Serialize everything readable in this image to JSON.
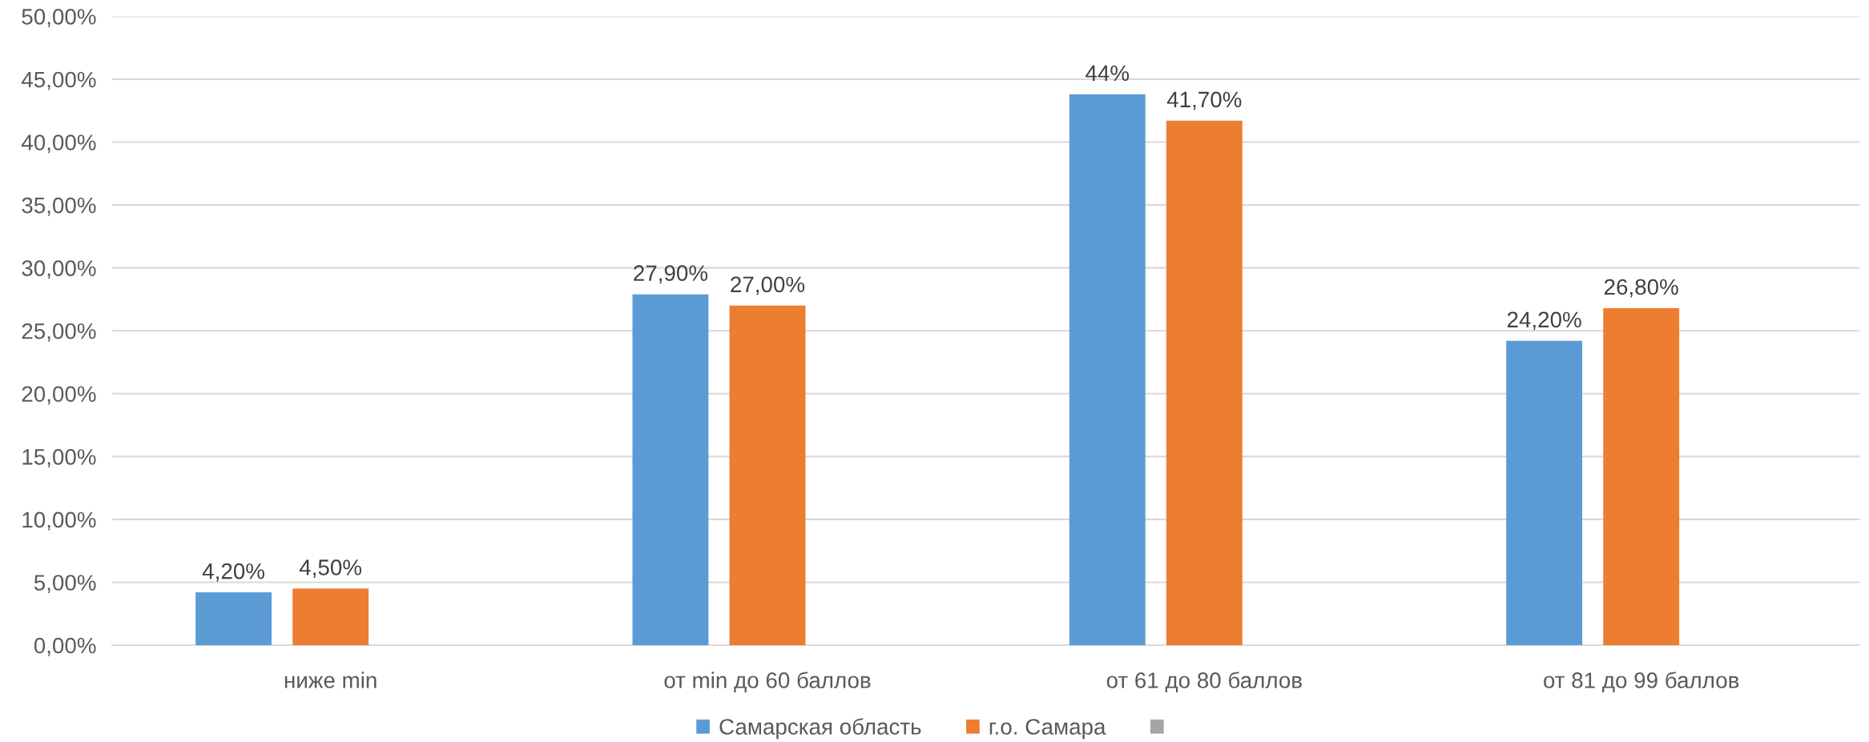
{
  "chart_data": {
    "type": "bar",
    "categories": [
      "ниже min",
      "от min до 60 баллов",
      "от 61 до 80 баллов",
      "от 81 до 99 баллов"
    ],
    "series": [
      {
        "name": "Самарская область",
        "color": "#5b9bd5",
        "values": [
          4.2,
          27.9,
          43.8,
          24.2
        ],
        "value_labels": [
          "4,20%",
          "27,90%",
          "44%",
          "24,20%"
        ]
      },
      {
        "name": "г.о. Самара",
        "color": "#ed7d31",
        "values": [
          4.5,
          27.0,
          41.7,
          26.8
        ],
        "value_labels": [
          "4,50%",
          "27,00%",
          "41,70%",
          "26,80%"
        ]
      },
      {
        "color": "#a5a5a5",
        "values": [
          null,
          null,
          null,
          null
        ]
      }
    ],
    "ylim": [
      0,
      50
    ],
    "yticks": [
      {
        "value": 0,
        "label": "0,00%"
      },
      {
        "value": 5,
        "label": "5,00%"
      },
      {
        "value": 10,
        "label": "10,00%"
      },
      {
        "value": 15,
        "label": "15,00%"
      },
      {
        "value": 20,
        "label": "20,00%"
      },
      {
        "value": 25,
        "label": "25,00%"
      },
      {
        "value": 30,
        "label": "30,00%"
      },
      {
        "value": 35,
        "label": "35,00%"
      },
      {
        "value": 40,
        "label": "40,00%"
      },
      {
        "value": 45,
        "label": "45,00%"
      },
      {
        "value": 50,
        "label": "50,00%"
      }
    ],
    "grid": "y",
    "legend": "bottom"
  }
}
